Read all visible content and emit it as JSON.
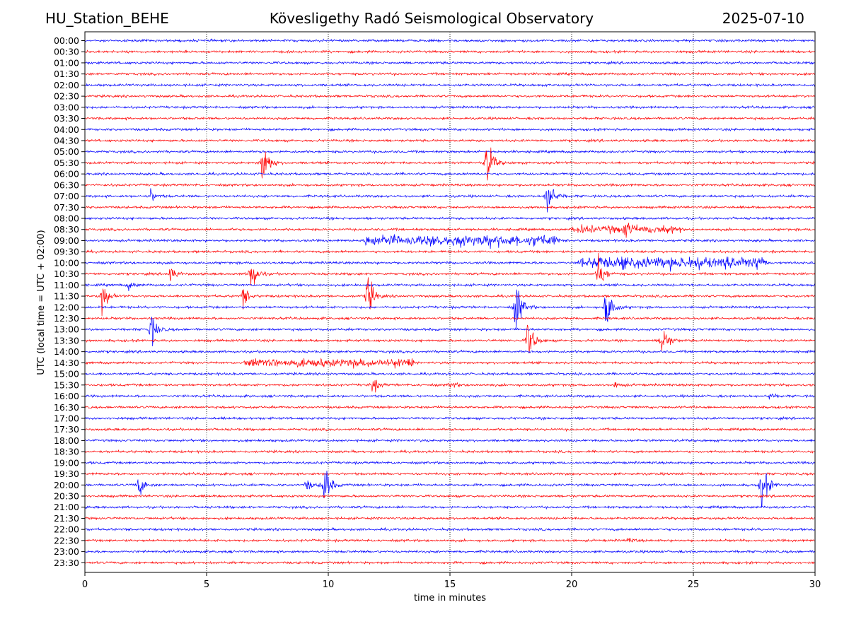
{
  "header": {
    "station": "HU_Station_BEHE",
    "title": "Kövesligethy Radó Seismological Observatory",
    "date": "2025-07-10"
  },
  "chart_data": {
    "type": "line",
    "title": "Kövesligethy Radó Seismological Observatory",
    "xlabel": "time in minutes",
    "ylabel": "UTC (local time = UTC + 02:00)",
    "xlim": [
      0,
      30
    ],
    "x_ticks": [
      "0",
      "5",
      "10",
      "15",
      "20",
      "25",
      "30"
    ],
    "grid": "vertical dotted lines at x ticks",
    "row_labels": [
      "00:00",
      "00:30",
      "01:00",
      "01:30",
      "02:00",
      "02:30",
      "03:00",
      "03:30",
      "04:00",
      "04:30",
      "05:00",
      "05:30",
      "06:00",
      "06:30",
      "07:00",
      "07:30",
      "08:00",
      "08:30",
      "09:00",
      "09:30",
      "10:00",
      "10:30",
      "11:00",
      "11:30",
      "12:00",
      "12:30",
      "13:00",
      "13:30",
      "14:00",
      "14:30",
      "15:00",
      "15:30",
      "16:00",
      "16:30",
      "17:00",
      "17:30",
      "18:00",
      "18:30",
      "19:00",
      "19:30",
      "20:00",
      "20:30",
      "21:00",
      "21:30",
      "22:00",
      "22:30",
      "23:00",
      "23:30"
    ],
    "colors": {
      "even_rows": "#0000ff",
      "odd_rows": "#ff0000"
    },
    "events": [
      {
        "row": 11,
        "t": 7.3,
        "amp": 1.0
      },
      {
        "row": 11,
        "t": 16.5,
        "amp": 0.95
      },
      {
        "row": 14,
        "t": 19.0,
        "amp": 0.85
      },
      {
        "row": 14,
        "t": 2.7,
        "amp": 0.2
      },
      {
        "row": 21,
        "t": 3.5,
        "amp": 0.3
      },
      {
        "row": 21,
        "t": 6.8,
        "amp": 0.7
      },
      {
        "row": 21,
        "t": 21.1,
        "amp": 0.65
      },
      {
        "row": 22,
        "t": 1.8,
        "amp": 0.15
      },
      {
        "row": 23,
        "t": 0.7,
        "amp": 0.55
      },
      {
        "row": 23,
        "t": 6.5,
        "amp": 0.35
      },
      {
        "row": 23,
        "t": 11.6,
        "amp": 0.85
      },
      {
        "row": 24,
        "t": 17.7,
        "amp": 1.0
      },
      {
        "row": 24,
        "t": 21.4,
        "amp": 0.95
      },
      {
        "row": 26,
        "t": 2.7,
        "amp": 0.6
      },
      {
        "row": 27,
        "t": 18.2,
        "amp": 0.8
      },
      {
        "row": 27,
        "t": 23.7,
        "amp": 0.7
      },
      {
        "row": 31,
        "t": 11.8,
        "amp": 0.3
      },
      {
        "row": 31,
        "t": 15.0,
        "amp": 0.12
      },
      {
        "row": 31,
        "t": 21.8,
        "amp": 0.1
      },
      {
        "row": 32,
        "t": 28.1,
        "amp": 0.12
      },
      {
        "row": 40,
        "t": 2.2,
        "amp": 0.4
      },
      {
        "row": 40,
        "t": 9.1,
        "amp": 0.2
      },
      {
        "row": 40,
        "t": 9.8,
        "amp": 0.9
      },
      {
        "row": 40,
        "t": 27.8,
        "amp": 0.9
      },
      {
        "row": 45,
        "t": 22.3,
        "amp": 0.08
      },
      {
        "row": 17,
        "t": 22.2,
        "amp": 0.2
      }
    ],
    "noise_bands": [
      {
        "row": 18,
        "from": 11.5,
        "to": 19.5,
        "amp": 0.18
      },
      {
        "row": 20,
        "from": 20.2,
        "to": 28.0,
        "amp": 0.2
      },
      {
        "row": 17,
        "from": 20.0,
        "to": 24.5,
        "amp": 0.12
      },
      {
        "row": 29,
        "from": 6.5,
        "to": 13.5,
        "amp": 0.12
      }
    ]
  }
}
